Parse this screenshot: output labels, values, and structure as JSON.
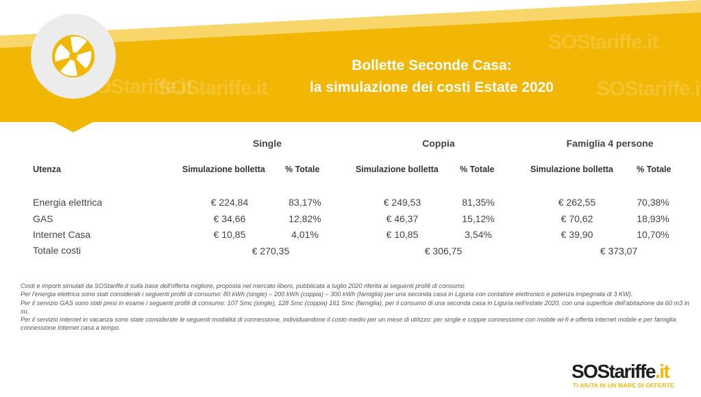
{
  "header": {
    "title_line1": "Bollette Seconde Casa:",
    "title_line2": "la simulazione dei costi Estate 2020",
    "watermark": "SOStariffe.it"
  },
  "table": {
    "groups": [
      "Single",
      "Coppia",
      "Famiglia 4 persone"
    ],
    "utenza_header": "Utenza",
    "col_sim": "Simulazione bolletta",
    "col_pct": "% Totale",
    "rows": [
      {
        "label": "Energia elettrica",
        "single": [
          "€ 224,84",
          "83,17%"
        ],
        "coppia": [
          "€ 249,53",
          "81,35%"
        ],
        "famiglia": [
          "€ 262,55",
          "70,38%"
        ]
      },
      {
        "label": "GAS",
        "single": [
          "€ 34,66",
          "12,82%"
        ],
        "coppia": [
          "€ 46,37",
          "15,12%"
        ],
        "famiglia": [
          "€ 70,62",
          "18,93%"
        ]
      },
      {
        "label": "Internet Casa",
        "single": [
          "€ 10,85",
          "4,01%"
        ],
        "coppia": [
          "€ 10,85",
          "3,54%"
        ],
        "famiglia": [
          "€ 39,90",
          "10,70%"
        ]
      }
    ],
    "totale_label": "Totale costi",
    "totali": [
      "€ 270,35",
      "€ 306,75",
      "€ 373,07"
    ]
  },
  "notes": [
    "Costi e importi simulati da SOStariffe.it sulla base dell'offerta migliore, proposta nel mercato libero, pubblicata a luglio 2020 riferita ai seguenti profili di consumo",
    "Per l'energia elettrica sono stati considerati i seguenti profili di consumo: 80 kWh (single) – 200 kWh (coppia) – 300 kWh (famiglia) per una seconda casa in Liguria con contatore elettronico e potenza impegnata di 3 KW).",
    "Per il servizio GAS sono stati presi in esame i seguenti profili di consumo: 107 Smc (single), 128 Smc (coppia) 161 Smc (famiglia), per il consumo di una seconda casa in Liguria nell'estate 2020, con una superficie dell'abitazione da 60 m3 in su.",
    "Per il servizio Internet in vacanza sono state considerate le seguenti modalità di connessione, individuandone il costo medio per un mese di utilizzo: per single e coppie connessione con mobile wi-fi e offerta internet mobile e per famiglia connessione Internet casa a tempo."
  ],
  "logo": {
    "text_main": "SOStariffe",
    "text_suffix": ".it",
    "tagline": "TI AIUTA IN UN MARE DI OFFERTE"
  },
  "colors": {
    "banner_yellow": "#f2b705",
    "light_yellow": "#f8d66a",
    "circle_grey": "#ececec"
  },
  "icons": [
    "fan-blades-icon"
  ]
}
